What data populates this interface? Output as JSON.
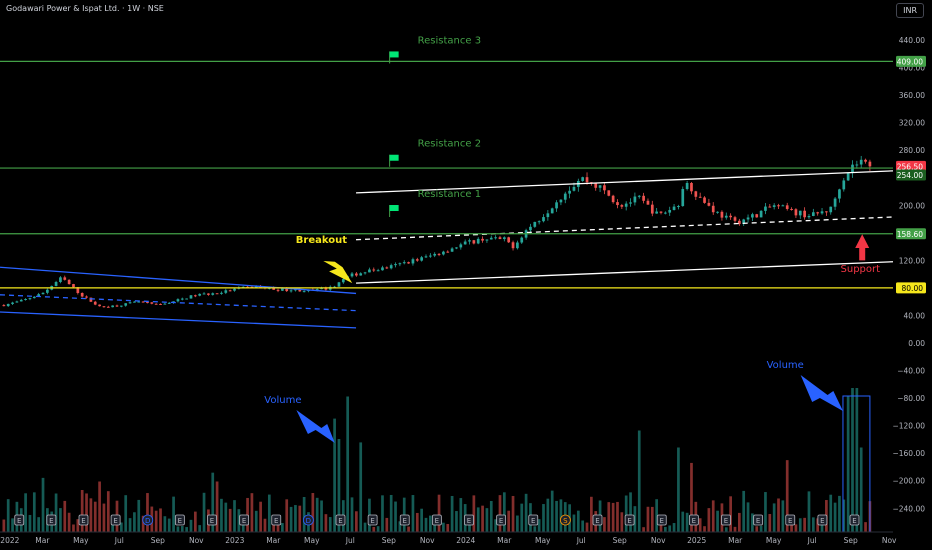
{
  "header": {
    "title": "Godawari Power & Ispat Ltd. · 1W · NSE",
    "currency": "INR"
  },
  "chart_data": {
    "type": "candlestick",
    "title": "Godawari Power & Ispat Ltd. · 1W · NSE",
    "ylim": [
      -260,
      480
    ],
    "y_ticks": [
      440,
      400,
      360,
      320,
      280,
      240,
      200,
      160,
      120,
      80,
      40,
      0,
      -40,
      -80,
      -120,
      -160,
      -200,
      -240
    ],
    "y_tick_labels": [
      "440.00",
      "400.00",
      "360.00",
      "320.00",
      "280.00",
      "240.00",
      "200.00",
      "160.00",
      "120.00",
      "80.00",
      "40.00",
      "0.00",
      "−40.00",
      "−80.00",
      "−120.00",
      "−160.00",
      "−200.00",
      "−240.00"
    ],
    "x_ticks": [
      {
        "label": "2022",
        "t": 0
      },
      {
        "label": "Mar",
        "t": 2
      },
      {
        "label": "May",
        "t": 4
      },
      {
        "label": "Jul",
        "t": 6
      },
      {
        "label": "Sep",
        "t": 8
      },
      {
        "label": "Nov",
        "t": 10
      },
      {
        "label": "2023",
        "t": 12
      },
      {
        "label": "Mar",
        "t": 14
      },
      {
        "label": "May",
        "t": 16
      },
      {
        "label": "Jul",
        "t": 18
      },
      {
        "label": "Sep",
        "t": 20
      },
      {
        "label": "Nov",
        "t": 22
      },
      {
        "label": "2024",
        "t": 24
      },
      {
        "label": "Mar",
        "t": 26
      },
      {
        "label": "May",
        "t": 28
      },
      {
        "label": "Jul",
        "t": 30
      },
      {
        "label": "Sep",
        "t": 32
      },
      {
        "label": "Nov",
        "t": 34
      },
      {
        "label": "2025",
        "t": 36
      },
      {
        "label": "Mar",
        "t": 38
      },
      {
        "label": "May",
        "t": 40
      },
      {
        "label": "Jul",
        "t": 42
      },
      {
        "label": "Sep",
        "t": 44
      },
      {
        "label": "Nov",
        "t": 46
      }
    ],
    "x_range": [
      -0.2,
      46.2
    ],
    "price_anchors": [
      [
        0,
        55
      ],
      [
        1,
        62
      ],
      [
        2,
        72
      ],
      [
        3,
        95
      ],
      [
        4,
        70
      ],
      [
        5,
        52
      ],
      [
        6,
        55
      ],
      [
        7,
        60
      ],
      [
        8,
        55
      ],
      [
        9,
        62
      ],
      [
        10,
        70
      ],
      [
        11,
        72
      ],
      [
        12,
        78
      ],
      [
        13,
        82
      ],
      [
        14,
        78
      ],
      [
        15,
        77
      ],
      [
        16,
        76
      ],
      [
        17,
        80
      ],
      [
        17.5,
        90
      ],
      [
        18,
        98
      ],
      [
        19,
        105
      ],
      [
        20,
        110
      ],
      [
        21,
        118
      ],
      [
        22,
        125
      ],
      [
        23,
        135
      ],
      [
        24,
        145
      ],
      [
        25,
        152
      ],
      [
        26,
        150
      ],
      [
        26.5,
        140
      ],
      [
        27,
        160
      ],
      [
        28,
        185
      ],
      [
        29,
        215
      ],
      [
        30,
        240
      ],
      [
        31,
        225
      ],
      [
        32,
        200
      ],
      [
        33,
        210
      ],
      [
        34,
        185
      ],
      [
        35,
        200
      ],
      [
        35.5,
        235
      ],
      [
        36,
        215
      ],
      [
        37,
        190
      ],
      [
        38,
        175
      ],
      [
        39,
        185
      ],
      [
        40,
        200
      ],
      [
        41,
        190
      ],
      [
        42,
        185
      ],
      [
        43,
        195
      ],
      [
        43.5,
        235
      ],
      [
        44,
        255
      ],
      [
        44.5,
        265
      ],
      [
        45,
        256.5
      ]
    ],
    "volume_spikes": [
      [
        4,
        0.3
      ],
      [
        5,
        0.35
      ],
      [
        11,
        0.35
      ],
      [
        17.2,
        0.72
      ],
      [
        17.5,
        0.6
      ],
      [
        17.8,
        0.85
      ],
      [
        18.5,
        0.58
      ],
      [
        33,
        0.65
      ],
      [
        35,
        0.55
      ],
      [
        43.8,
        0.85
      ],
      [
        44.2,
        0.9
      ],
      [
        44.6,
        0.55
      ]
    ],
    "horizontal_levels": [
      {
        "name": "Resistance 3",
        "value": 409,
        "label": "409.00",
        "color": "#43a047"
      },
      {
        "name": "Resistance 2",
        "value": 254,
        "color": "#43a047"
      },
      {
        "name": "Resistance 1",
        "value": 158.6,
        "label": "158.60",
        "color": "#43a047"
      },
      {
        "name": "support",
        "value": 80,
        "label": "80.00",
        "color": "#f6e71c"
      }
    ],
    "price_labels": [
      {
        "value": 256.5,
        "label": "256.50",
        "bg": "#f23645"
      },
      {
        "value": 244,
        "label": "254.00",
        "bg": "#1b5e20"
      }
    ],
    "trendlines": [
      {
        "role": "channel-upper",
        "from": [
          18.3,
          218
        ],
        "to": [
          46.2,
          250
        ],
        "color": "#ffffff",
        "dash": false
      },
      {
        "role": "channel-mid",
        "from": [
          18.3,
          150
        ],
        "to": [
          46.2,
          183
        ],
        "color": "#ffffff",
        "dash": true
      },
      {
        "role": "channel-lower",
        "from": [
          18.3,
          87
        ],
        "to": [
          46.2,
          118
        ],
        "color": "#ffffff",
        "dash": false
      },
      {
        "role": "down-upper",
        "from": [
          -0.2,
          110
        ],
        "to": [
          18.3,
          72
        ],
        "color": "#2962ff",
        "dash": false
      },
      {
        "role": "down-mid",
        "from": [
          -0.2,
          70
        ],
        "to": [
          18.3,
          47
        ],
        "color": "#2962ff",
        "dash": true
      },
      {
        "role": "down-lower",
        "from": [
          -0.2,
          45
        ],
        "to": [
          18.3,
          22
        ],
        "color": "#2962ff",
        "dash": false
      }
    ],
    "annotations": [
      {
        "text": "Resistance 3",
        "t": 21.5,
        "value": 435,
        "color": "#43a047",
        "flag": true
      },
      {
        "text": "Resistance 2",
        "t": 21.5,
        "value": 285,
        "color": "#43a047",
        "flag": true
      },
      {
        "text": "Resistance 1",
        "t": 21.5,
        "value": 212,
        "color": "#43a047",
        "flag": true
      },
      {
        "text": "Breakout",
        "color": "#f6e71c"
      },
      {
        "text": "Support",
        "color": "#f23645"
      },
      {
        "text": "Volume",
        "color": "#2962ff"
      },
      {
        "text": "Volume",
        "color": "#2962ff"
      }
    ],
    "event_markers": [
      "E",
      "E",
      "E",
      "E",
      "D",
      "E",
      "E",
      "E",
      "E",
      "D",
      "E",
      "E",
      "E",
      "E",
      "E",
      "E",
      "E",
      "S",
      "E",
      "E",
      "E",
      "E",
      "E",
      "E",
      "E",
      "E",
      "E"
    ]
  }
}
